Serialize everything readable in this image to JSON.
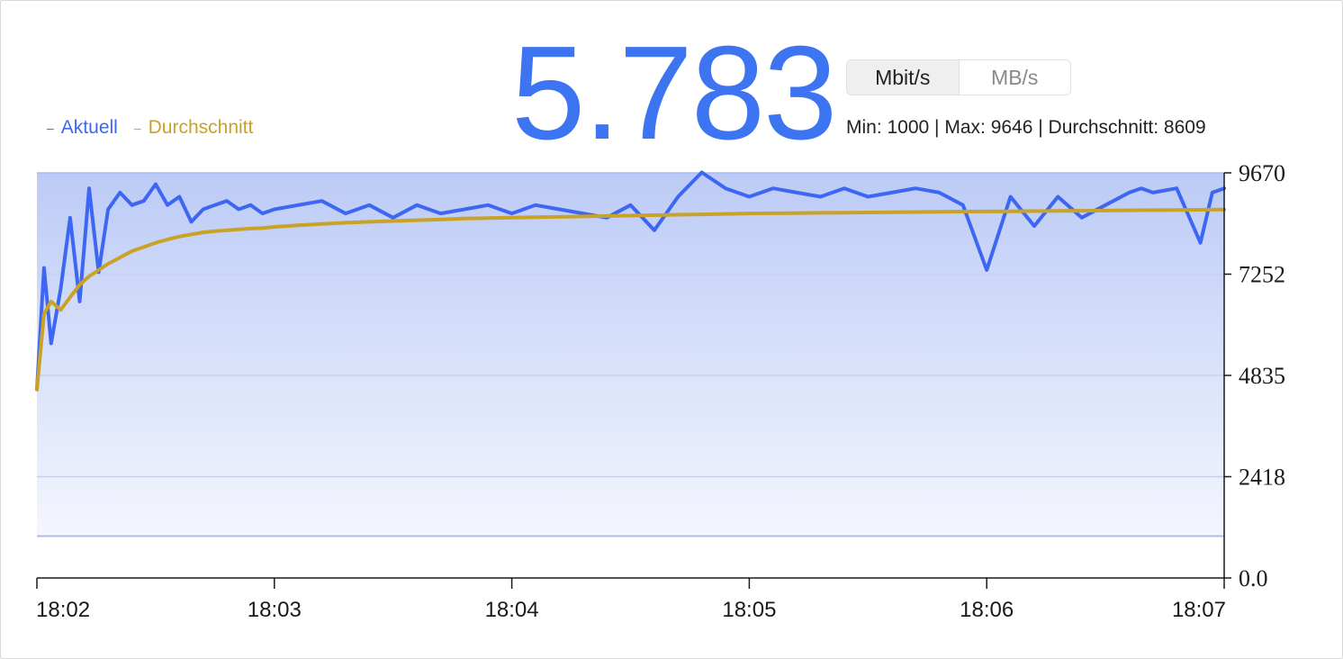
{
  "current_value": "5.783",
  "units": {
    "options": [
      "Mbit/s",
      "MB/s"
    ],
    "selected": "Mbit/s"
  },
  "stats_text": "Min: 1000 | Max: 9646 | Durchschnitt: 8609",
  "legend": [
    {
      "label": "Aktuell",
      "color": "#3d66f2"
    },
    {
      "label": "Durchschnitt",
      "color": "#c9a228"
    }
  ],
  "colors": {
    "accent": "#3d74f2",
    "current_line": "#3d66f2",
    "average_line": "#c9a228",
    "area_top": "#bccbf6",
    "area_bottom": "#f4f6fe"
  },
  "chart_data": {
    "type": "line",
    "title": "",
    "xlabel": "",
    "ylabel": "",
    "ylim": [
      0,
      9670
    ],
    "y_ticks": [
      "9670",
      "7252",
      "4835",
      "2418",
      "0.0"
    ],
    "y_tick_values": [
      9670,
      7252,
      4835,
      2418,
      0
    ],
    "x_ticks": [
      "18:02",
      "18:03",
      "18:04",
      "18:05",
      "18:06",
      "18:07"
    ],
    "x_tick_minutes": [
      0,
      1,
      2,
      3,
      4,
      5
    ],
    "xlim_minutes": [
      0,
      5
    ],
    "min_line": 1000,
    "grid": true,
    "legend_position": "top-left",
    "series": [
      {
        "name": "Aktuell",
        "x": [
          0,
          0.03,
          0.06,
          0.1,
          0.14,
          0.18,
          0.22,
          0.26,
          0.3,
          0.35,
          0.4,
          0.45,
          0.5,
          0.55,
          0.6,
          0.65,
          0.7,
          0.75,
          0.8,
          0.85,
          0.9,
          0.95,
          1.0,
          1.1,
          1.2,
          1.3,
          1.4,
          1.5,
          1.6,
          1.7,
          1.8,
          1.9,
          2.0,
          2.1,
          2.2,
          2.3,
          2.4,
          2.5,
          2.6,
          2.7,
          2.8,
          2.9,
          2.95,
          3.0,
          3.1,
          3.2,
          3.3,
          3.4,
          3.5,
          3.6,
          3.7,
          3.8,
          3.9,
          4.0,
          4.1,
          4.2,
          4.3,
          4.4,
          4.5,
          4.6,
          4.65,
          4.7,
          4.8,
          4.9,
          4.95,
          5.0
        ],
        "y": [
          4500,
          7400,
          5600,
          6900,
          8600,
          6600,
          9300,
          7300,
          8800,
          9200,
          8900,
          9000,
          9400,
          8900,
          9100,
          8500,
          8800,
          8900,
          9000,
          8800,
          8900,
          8700,
          8800,
          8900,
          9000,
          8700,
          8900,
          8600,
          8900,
          8700,
          8800,
          8900,
          8700,
          8900,
          8800,
          8700,
          8600,
          8900,
          8300,
          9100,
          9680,
          9300,
          9200,
          9100,
          9300,
          9200,
          9100,
          9300,
          9100,
          9200,
          9300,
          9200,
          8900,
          7350,
          9100,
          8400,
          9100,
          8600,
          8900,
          9200,
          9300,
          9200,
          9300,
          8000,
          9200,
          9300
        ]
      },
      {
        "name": "Durchschnitt",
        "x": [
          0,
          0.03,
          0.06,
          0.1,
          0.14,
          0.18,
          0.22,
          0.26,
          0.3,
          0.35,
          0.4,
          0.45,
          0.5,
          0.55,
          0.6,
          0.65,
          0.7,
          0.75,
          0.8,
          0.85,
          0.9,
          0.95,
          1.0,
          1.1,
          1.2,
          1.3,
          1.4,
          1.5,
          1.6,
          1.7,
          1.8,
          1.9,
          2.0,
          2.1,
          2.2,
          2.3,
          2.4,
          2.5,
          2.6,
          2.7,
          2.8,
          2.9,
          2.95,
          3.0,
          3.1,
          3.2,
          3.3,
          3.4,
          3.5,
          3.6,
          3.7,
          3.8,
          3.9,
          4.0,
          4.1,
          4.2,
          4.3,
          4.4,
          4.5,
          4.6,
          4.65,
          4.7,
          4.8,
          4.9,
          4.95,
          5.0
        ],
        "y": [
          4500,
          6300,
          6600,
          6400,
          6700,
          7000,
          7200,
          7350,
          7500,
          7650,
          7800,
          7900,
          8000,
          8080,
          8150,
          8200,
          8250,
          8280,
          8300,
          8320,
          8340,
          8350,
          8380,
          8420,
          8450,
          8480,
          8500,
          8520,
          8540,
          8560,
          8580,
          8590,
          8600,
          8610,
          8620,
          8630,
          8640,
          8650,
          8660,
          8670,
          8680,
          8690,
          8695,
          8700,
          8705,
          8710,
          8715,
          8720,
          8725,
          8730,
          8735,
          8740,
          8745,
          8748,
          8752,
          8756,
          8760,
          8765,
          8770,
          8775,
          8778,
          8780,
          8785,
          8790,
          8792,
          8795
        ]
      }
    ]
  }
}
